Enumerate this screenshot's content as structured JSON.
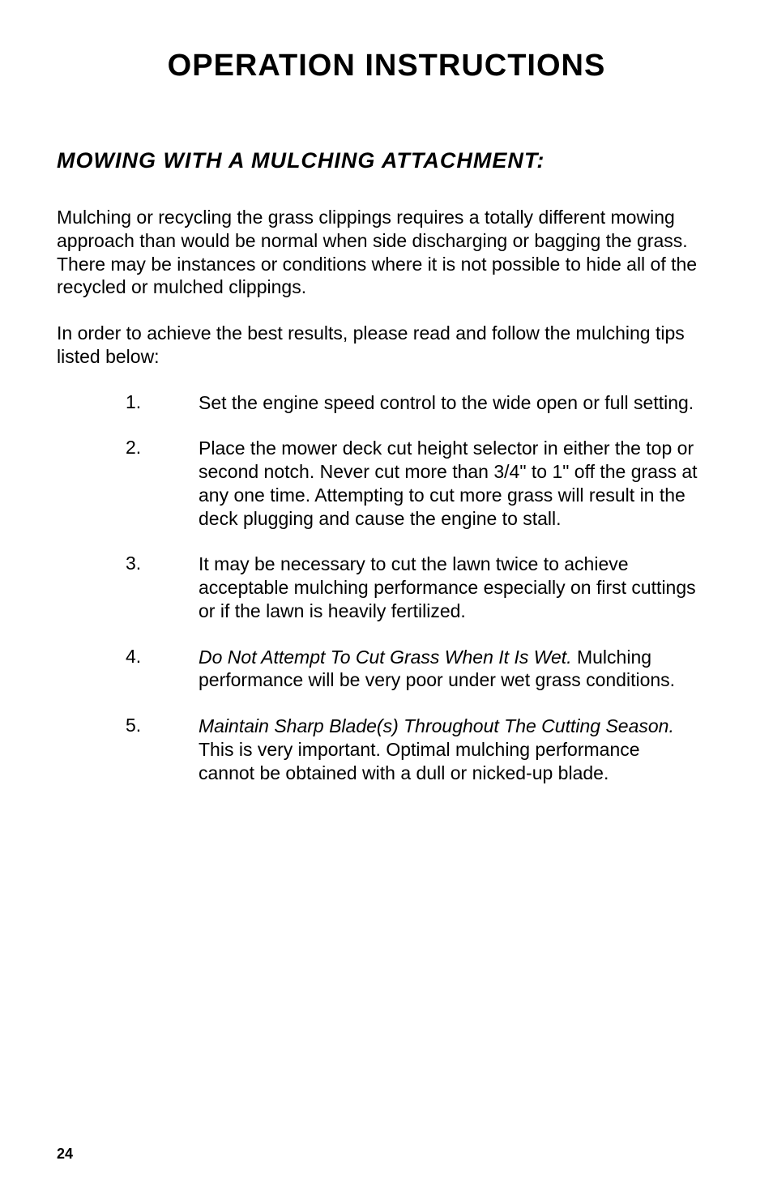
{
  "title": "OPERATION  INSTRUCTIONS",
  "section_title": "MOWING  WITH  A  MULCHING  ATTACHMENT:",
  "intro_para": "Mulching or recycling the grass clippings requires a totally different mowing approach than would be normal when side discharging or bagging the grass.  There may be instances or conditions where it is not possible to hide all of the recycled or mulched clippings.",
  "lead_in": "In order to achieve the best results, please read and follow the mulching tips listed below:",
  "items": {
    "n1": "1.",
    "t1": "Set the engine speed control to the wide open or full setting.",
    "n2": "2.",
    "t2": "Place the mower deck cut height selector in either the top or second notch.  Never cut more than 3/4\" to 1\" off the grass at any one time.  Attempting to cut more grass will result in the deck plugging and cause the engine to stall.",
    "n3": "3.",
    "t3": "It may be necessary to cut the lawn twice to achieve acceptable mulching performance especially on first cuttings or if the lawn is heavily fertilized.",
    "n4": "4.",
    "t4a": "Do Not Attempt To Cut Grass When It Is Wet.",
    "t4b": "  Mulching performance will be very poor under wet grass conditions.",
    "n5": "5.",
    "t5a": "Maintain Sharp Blade(s) Throughout The Cutting Season.",
    "t5b": "  This is very important.  Optimal mulching performance cannot be obtained with a dull or nicked-up blade."
  },
  "page_number": "24",
  "styling": {
    "page_bg": "#ffffff",
    "text_color": "#000000",
    "title_fontsize": 38,
    "section_title_fontsize": 27,
    "body_fontsize": 23,
    "page_num_fontsize": 18,
    "font_family": "Arial, Helvetica, sans-serif"
  }
}
